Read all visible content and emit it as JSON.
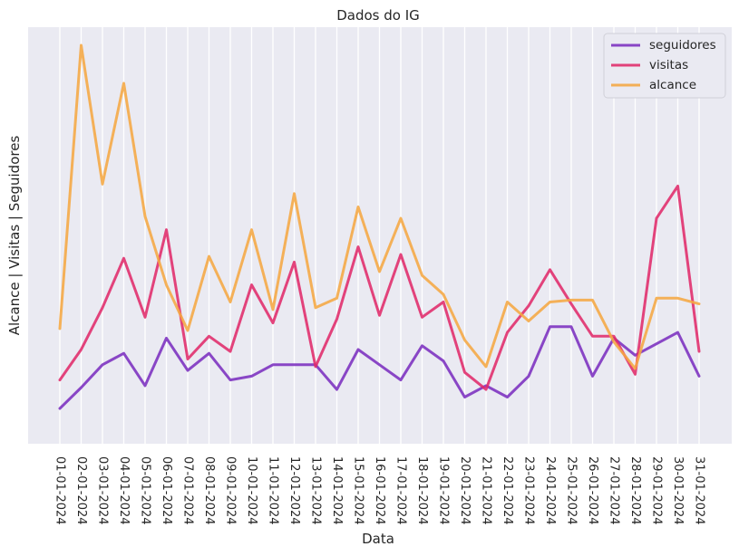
{
  "chart_data": {
    "type": "line",
    "title": "Dados do IG",
    "xlabel": "Data",
    "ylabel": "Alcance | Visitas | Seguidores",
    "grid": true,
    "y_ticks_shown": false,
    "legend_position": "top-right",
    "categories": [
      "01-01-2024",
      "02-01-2024",
      "03-01-2024",
      "04-01-2024",
      "05-01-2024",
      "06-01-2024",
      "07-01-2024",
      "08-01-2024",
      "09-01-2024",
      "10-01-2024",
      "11-01-2024",
      "12-01-2024",
      "13-01-2024",
      "14-01-2024",
      "15-01-2024",
      "16-01-2024",
      "17-01-2024",
      "18-01-2024",
      "19-01-2024",
      "20-01-2024",
      "21-01-2024",
      "22-01-2024",
      "23-01-2024",
      "24-01-2024",
      "25-01-2024",
      "26-01-2024",
      "27-01-2024",
      "28-01-2024",
      "29-01-2024",
      "30-01-2024",
      "31-01-2024"
    ],
    "ylim": [
      0,
      100
    ],
    "series": [
      {
        "name": "seguidores",
        "color": "#7b2fbf",
        "values": [
          4.5,
          10.0,
          16.0,
          19.0,
          10.5,
          23.0,
          14.5,
          19.0,
          12.0,
          13.0,
          16.0,
          16.0,
          16.0,
          9.5,
          20.0,
          16.0,
          12.0,
          21.0,
          17.0,
          7.5,
          10.5,
          7.5,
          13.0,
          26.0,
          26.0,
          13.0,
          23.0,
          18.5,
          21.5,
          24.5,
          13.0
        ]
      },
      {
        "name": "visitas",
        "color": "#e02a6a",
        "values": [
          12.0,
          20.0,
          31.0,
          44.0,
          28.5,
          51.5,
          17.5,
          23.5,
          19.5,
          37.0,
          27.0,
          43.0,
          15.5,
          28.0,
          47.0,
          29.0,
          45.0,
          28.5,
          32.5,
          14.0,
          9.5,
          24.5,
          31.5,
          41.0,
          32.0,
          23.5,
          23.5,
          13.5,
          54.5,
          63.0,
          19.5
        ]
      },
      {
        "name": "alcance",
        "color": "#f5a742",
        "values": [
          25.5,
          100.0,
          63.5,
          90.0,
          55.0,
          37.0,
          25.0,
          44.5,
          32.5,
          51.5,
          30.5,
          61.0,
          31.0,
          33.5,
          57.5,
          40.5,
          54.5,
          39.5,
          34.5,
          22.5,
          15.5,
          32.5,
          27.5,
          32.5,
          33.0,
          33.0,
          22.0,
          15.0,
          33.5,
          33.5,
          32.0
        ]
      }
    ]
  }
}
